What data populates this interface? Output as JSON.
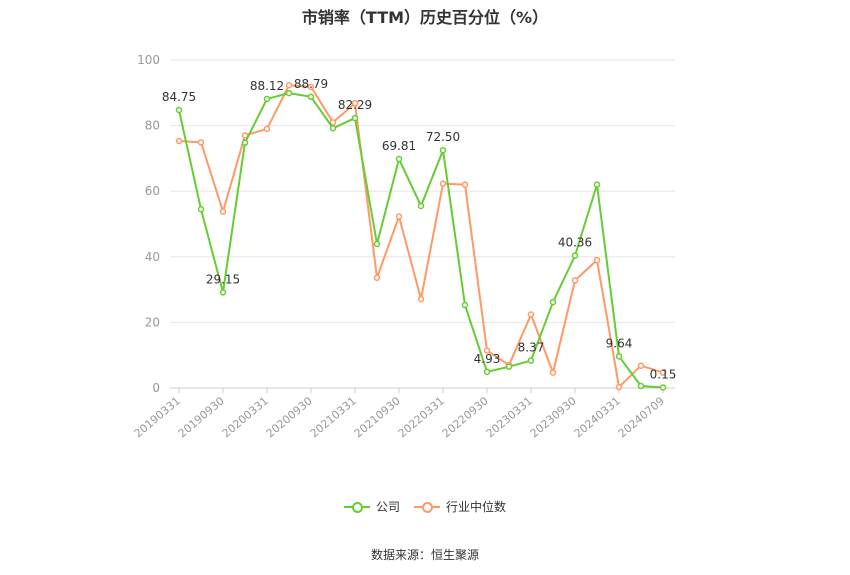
{
  "chart_data": {
    "type": "line",
    "title": "市销率（TTM）历史百分位（%）",
    "ylim": [
      0,
      100
    ],
    "yticks": [
      0,
      20,
      40,
      60,
      80,
      100
    ],
    "x_tick_labels": [
      "20190331",
      "20190930",
      "20200331",
      "20200930",
      "20210331",
      "20210930",
      "20220331",
      "20220930",
      "20230331",
      "20230930",
      "20240331",
      "20240709"
    ],
    "x_tick_positions": [
      0,
      2,
      4,
      6,
      8,
      10,
      12,
      14,
      16,
      18,
      20,
      22
    ],
    "num_points": 23,
    "grid": true,
    "legend_position": "bottom",
    "series": [
      {
        "name": "公司",
        "color": "#66cc33",
        "values": [
          84.75,
          54.5,
          29.15,
          74.8,
          88.12,
          89.9,
          88.79,
          79.2,
          82.29,
          43.9,
          69.81,
          55.5,
          72.5,
          25.3,
          4.93,
          6.5,
          8.37,
          26.2,
          40.36,
          62.0,
          9.64,
          0.6,
          0.15
        ],
        "labels": {
          "0": "84.75",
          "2": "29.15",
          "4": "88.12",
          "6": "88.79",
          "8": "82.29",
          "10": "69.81",
          "12": "72.50",
          "14": "4.93",
          "16": "8.37",
          "18": "40.36",
          "20": "9.64",
          "22": "0.15"
        }
      },
      {
        "name": "行业中位数",
        "color": "#ff9966",
        "values": [
          75.3,
          74.9,
          53.8,
          77.0,
          79.0,
          92.3,
          91.8,
          81.0,
          86.8,
          33.6,
          52.3,
          27.1,
          62.3,
          62.0,
          11.4,
          7.0,
          22.4,
          4.7,
          32.8,
          39.0,
          0.3,
          6.8,
          4.7
        ]
      }
    ]
  },
  "source_text": "数据来源：恒生聚源"
}
